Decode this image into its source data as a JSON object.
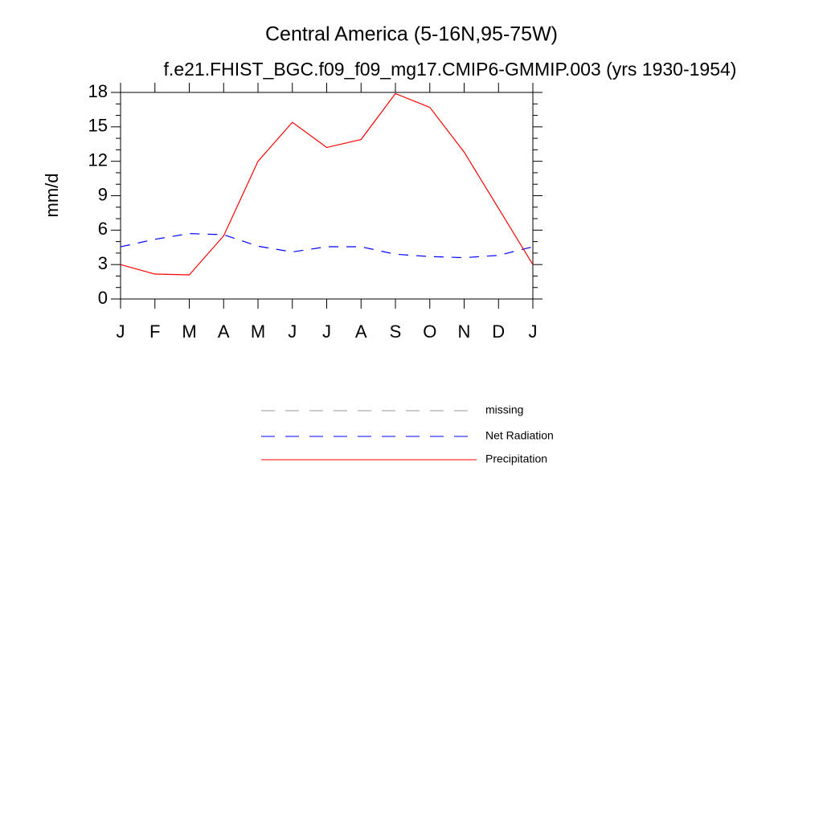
{
  "chart_data": {
    "type": "line",
    "title": "Central America (5-16N,95-75W)",
    "subtitle": "f.e21.FHIST_BGC.f09_f09_mg17.CMIP6-GMMIP.003 (yrs 1930-1954)",
    "y_label": "mm/d",
    "categories": [
      "J",
      "F",
      "M",
      "A",
      "M",
      "J",
      "J",
      "A",
      "S",
      "O",
      "N",
      "D",
      "J"
    ],
    "series": [
      {
        "name": "missing",
        "color": "#999999",
        "dash": true,
        "values": [
          null,
          null,
          null,
          null,
          null,
          null,
          null,
          null,
          null,
          null,
          null,
          null,
          null
        ]
      },
      {
        "name": "Net Radiation",
        "color": "#0000ff",
        "dash": true,
        "values": [
          4.55,
          5.2,
          5.7,
          5.6,
          4.6,
          4.1,
          4.55,
          4.55,
          3.9,
          3.7,
          3.6,
          3.8,
          4.55
        ]
      },
      {
        "name": "Precipitation",
        "color": "#ff0000",
        "dash": false,
        "values": [
          3.0,
          2.17,
          2.1,
          5.5,
          12.0,
          15.4,
          13.2,
          13.9,
          17.9,
          16.7,
          12.8,
          7.9,
          3.0
        ]
      }
    ],
    "ylim": [
      0,
      18
    ],
    "yticks": [
      0,
      3,
      6,
      9,
      12,
      15,
      18
    ],
    "grid": false
  }
}
